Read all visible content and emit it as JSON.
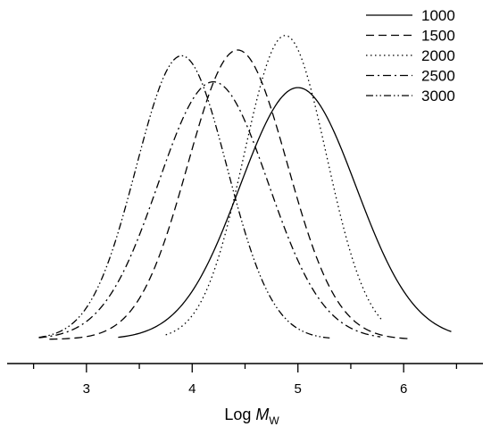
{
  "chart_data": {
    "type": "line",
    "title": "",
    "xlabel": {
      "prefix": "Log ",
      "main": "M",
      "subscript": "W"
    },
    "ylabel": "",
    "xlim": [
      2.25,
      6.75
    ],
    "ylim": [
      0,
      1.08
    ],
    "x_ticks": [
      "3",
      "4",
      "5",
      "6"
    ],
    "minor_x_ticks": [
      2.5,
      3.5,
      4.5,
      5.5,
      6.5
    ],
    "y_axis_visible": false,
    "grid": false,
    "legend_position": "top-right",
    "series": [
      {
        "name": "1000",
        "style": "solid",
        "dash": "",
        "mu": 5.0,
        "sigma": 0.55,
        "peak": 0.87,
        "range": [
          3.3,
          6.45
        ]
      },
      {
        "name": "1500",
        "style": "dashed",
        "dash": "9,5",
        "mu": 4.43,
        "sigma": 0.47,
        "peak": 1.0,
        "range": [
          2.65,
          6.05
        ]
      },
      {
        "name": "2000",
        "style": "dotted",
        "dash": "1.5,3.5",
        "mu": 4.88,
        "sigma": 0.39,
        "peak": 1.05,
        "range": [
          3.75,
          5.8
        ]
      },
      {
        "name": "2500",
        "style": "dash-dot",
        "dash": "9,4,2,4",
        "mu": 4.2,
        "sigma": 0.52,
        "peak": 0.89,
        "range": [
          2.55,
          5.78
        ]
      },
      {
        "name": "3000",
        "style": "dash-dot-dot",
        "dash": "8,3,1.5,3,1.5,3",
        "mu": 3.9,
        "sigma": 0.43,
        "peak": 0.98,
        "range": [
          2.55,
          5.3
        ]
      }
    ]
  }
}
